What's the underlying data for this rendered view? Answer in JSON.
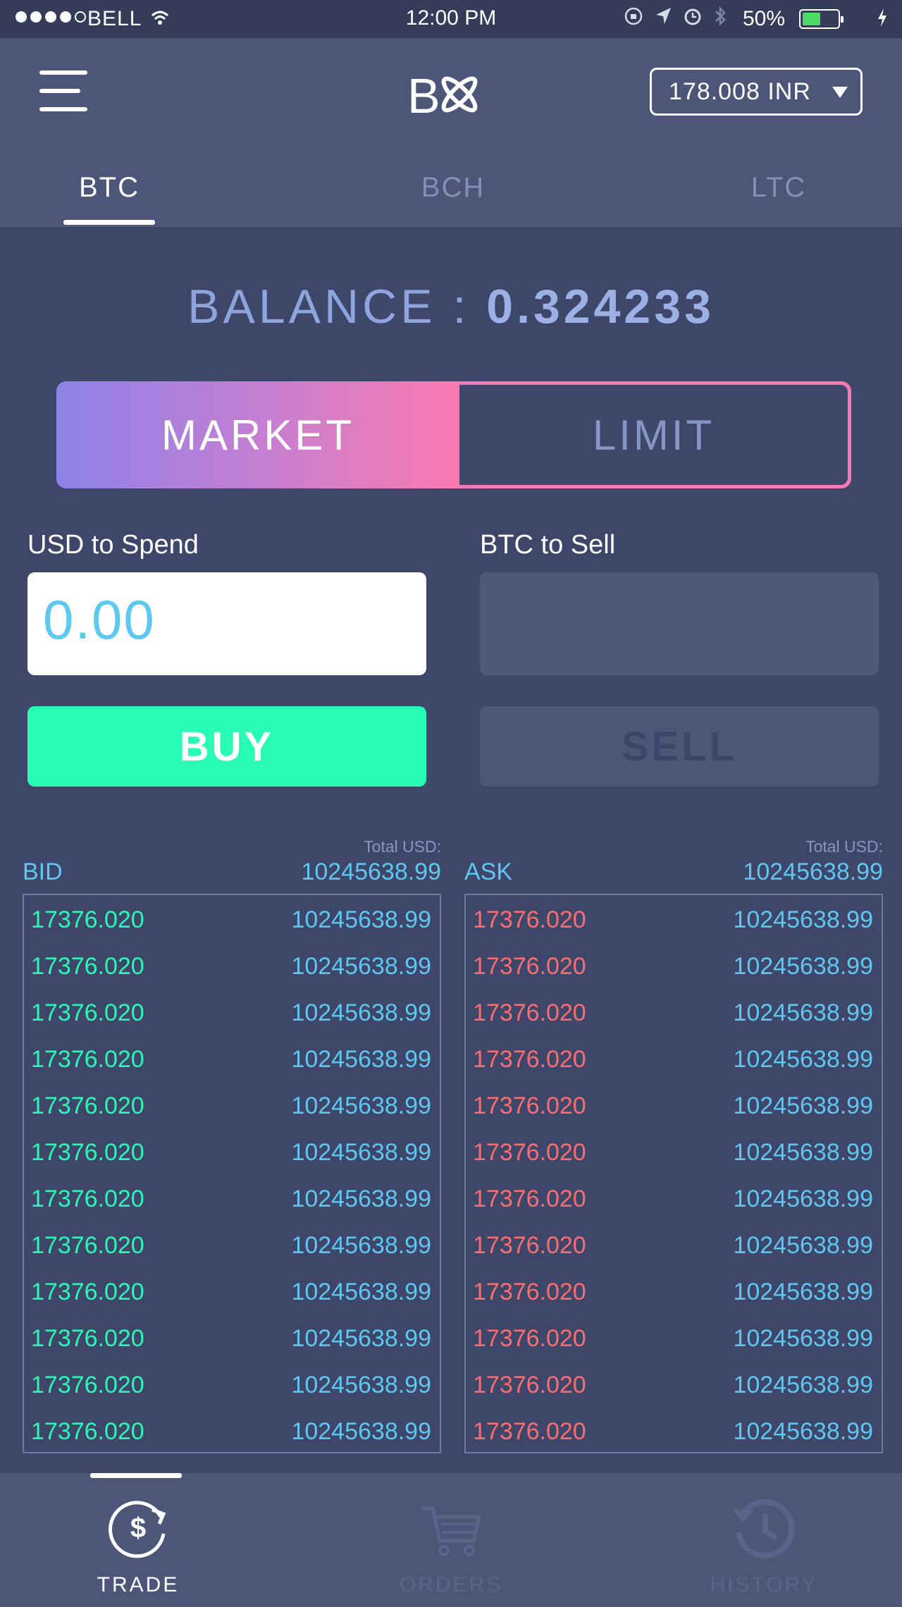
{
  "status_bar": {
    "carrier": "BELL",
    "time": "12:00 PM",
    "battery_percent": "50%",
    "battery_level": 0.5,
    "battery_color": "#4cd964"
  },
  "header": {
    "menu_icon": "hamburger-menu-icon",
    "logo_text": "B",
    "currency_selector": "178.008 INR"
  },
  "tabs": [
    {
      "label": "BTC",
      "active": true
    },
    {
      "label": "BCH",
      "active": false
    },
    {
      "label": "LTC",
      "active": false
    }
  ],
  "balance": {
    "label": "BALANCE :",
    "value": "0.324233"
  },
  "order_type": {
    "market_label": "MARKET",
    "limit_label": "LIMIT",
    "selected": "MARKET"
  },
  "buy": {
    "field_label": "USD to Spend",
    "placeholder": "0.00",
    "button_label": "BUY"
  },
  "sell": {
    "field_label": "BTC to Sell",
    "value": "",
    "button_label": "SELL"
  },
  "bid_book": {
    "title": "BID",
    "total_label": "Total USD:",
    "total_value": "10245638.99",
    "rows": [
      {
        "price": "17376.020",
        "amount": "10245638.99"
      },
      {
        "price": "17376.020",
        "amount": "10245638.99"
      },
      {
        "price": "17376.020",
        "amount": "10245638.99"
      },
      {
        "price": "17376.020",
        "amount": "10245638.99"
      },
      {
        "price": "17376.020",
        "amount": "10245638.99"
      },
      {
        "price": "17376.020",
        "amount": "10245638.99"
      },
      {
        "price": "17376.020",
        "amount": "10245638.99"
      },
      {
        "price": "17376.020",
        "amount": "10245638.99"
      },
      {
        "price": "17376.020",
        "amount": "10245638.99"
      },
      {
        "price": "17376.020",
        "amount": "10245638.99"
      },
      {
        "price": "17376.020",
        "amount": "10245638.99"
      },
      {
        "price": "17376.020",
        "amount": "10245638.99"
      }
    ]
  },
  "ask_book": {
    "title": "ASK",
    "total_label": "Total USD:",
    "total_value": "10245638.99",
    "rows": [
      {
        "price": "17376.020",
        "amount": "10245638.99"
      },
      {
        "price": "17376.020",
        "amount": "10245638.99"
      },
      {
        "price": "17376.020",
        "amount": "10245638.99"
      },
      {
        "price": "17376.020",
        "amount": "10245638.99"
      },
      {
        "price": "17376.020",
        "amount": "10245638.99"
      },
      {
        "price": "17376.020",
        "amount": "10245638.99"
      },
      {
        "price": "17376.020",
        "amount": "10245638.99"
      },
      {
        "price": "17376.020",
        "amount": "10245638.99"
      },
      {
        "price": "17376.020",
        "amount": "10245638.99"
      },
      {
        "price": "17376.020",
        "amount": "10245638.99"
      },
      {
        "price": "17376.020",
        "amount": "10245638.99"
      },
      {
        "price": "17376.020",
        "amount": "10245638.99"
      }
    ]
  },
  "bottom_nav": [
    {
      "label": "TRADE",
      "icon": "dollar-refresh-icon",
      "active": true
    },
    {
      "label": "ORDERS",
      "icon": "cart-icon",
      "active": false
    },
    {
      "label": "HISTORY",
      "icon": "history-clock-icon",
      "active": false
    }
  ],
  "colors": {
    "background": "#3e4769",
    "header": "#4d5679",
    "buy_green": "#28fcb4",
    "bid_price": "#2bf6b4",
    "ask_price": "#f86e70",
    "amount_blue": "#5fc6f0",
    "gradient_start": "#8d82e8",
    "gradient_end": "#fb7ab0"
  }
}
